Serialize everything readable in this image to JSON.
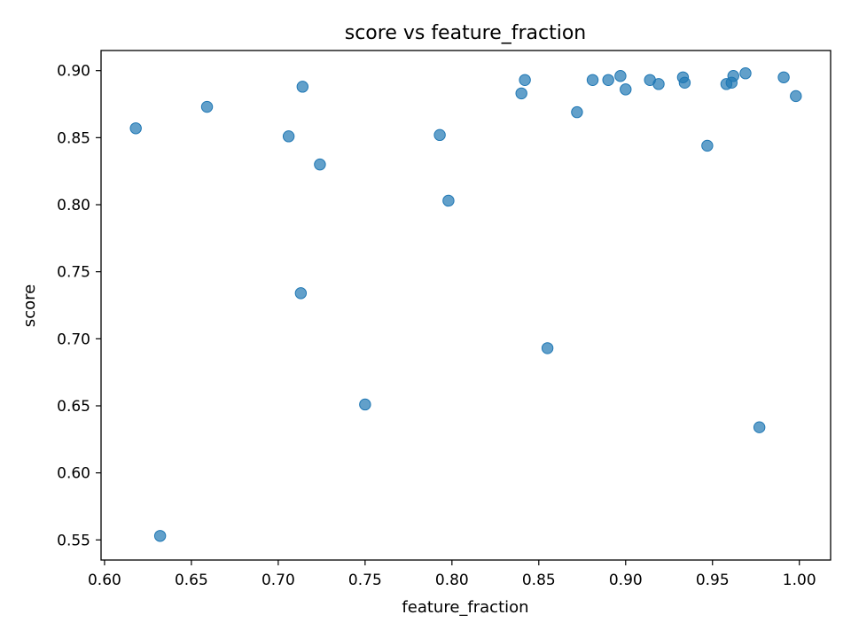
{
  "chart_data": {
    "type": "scatter",
    "title": "score vs feature_fraction",
    "xlabel": "feature_fraction",
    "ylabel": "score",
    "xlim": [
      0.598,
      1.018
    ],
    "ylim": [
      0.535,
      0.915
    ],
    "x_ticks": [
      0.6,
      0.65,
      0.7,
      0.75,
      0.8,
      0.85,
      0.9,
      0.95,
      1.0
    ],
    "x_tick_labels": [
      "0.60",
      "0.65",
      "0.70",
      "0.75",
      "0.80",
      "0.85",
      "0.90",
      "0.95",
      "1.00"
    ],
    "y_ticks": [
      0.55,
      0.6,
      0.65,
      0.7,
      0.75,
      0.8,
      0.85,
      0.9
    ],
    "y_tick_labels": [
      "0.55",
      "0.60",
      "0.65",
      "0.70",
      "0.75",
      "0.80",
      "0.85",
      "0.90"
    ],
    "grid": false,
    "marker_color": "#1f77b4",
    "marker_alpha": 0.7,
    "points": [
      {
        "x": 0.618,
        "y": 0.857
      },
      {
        "x": 0.632,
        "y": 0.553
      },
      {
        "x": 0.659,
        "y": 0.873
      },
      {
        "x": 0.706,
        "y": 0.851
      },
      {
        "x": 0.713,
        "y": 0.734
      },
      {
        "x": 0.714,
        "y": 0.888
      },
      {
        "x": 0.724,
        "y": 0.83
      },
      {
        "x": 0.75,
        "y": 0.651
      },
      {
        "x": 0.793,
        "y": 0.852
      },
      {
        "x": 0.798,
        "y": 0.803
      },
      {
        "x": 0.84,
        "y": 0.883
      },
      {
        "x": 0.842,
        "y": 0.893
      },
      {
        "x": 0.855,
        "y": 0.693
      },
      {
        "x": 0.872,
        "y": 0.869
      },
      {
        "x": 0.881,
        "y": 0.893
      },
      {
        "x": 0.89,
        "y": 0.893
      },
      {
        "x": 0.897,
        "y": 0.896
      },
      {
        "x": 0.9,
        "y": 0.886
      },
      {
        "x": 0.914,
        "y": 0.893
      },
      {
        "x": 0.919,
        "y": 0.89
      },
      {
        "x": 0.933,
        "y": 0.895
      },
      {
        "x": 0.934,
        "y": 0.891
      },
      {
        "x": 0.947,
        "y": 0.844
      },
      {
        "x": 0.958,
        "y": 0.89
      },
      {
        "x": 0.961,
        "y": 0.891
      },
      {
        "x": 0.962,
        "y": 0.896
      },
      {
        "x": 0.969,
        "y": 0.898
      },
      {
        "x": 0.977,
        "y": 0.634
      },
      {
        "x": 0.991,
        "y": 0.895
      },
      {
        "x": 0.998,
        "y": 0.881
      }
    ]
  }
}
